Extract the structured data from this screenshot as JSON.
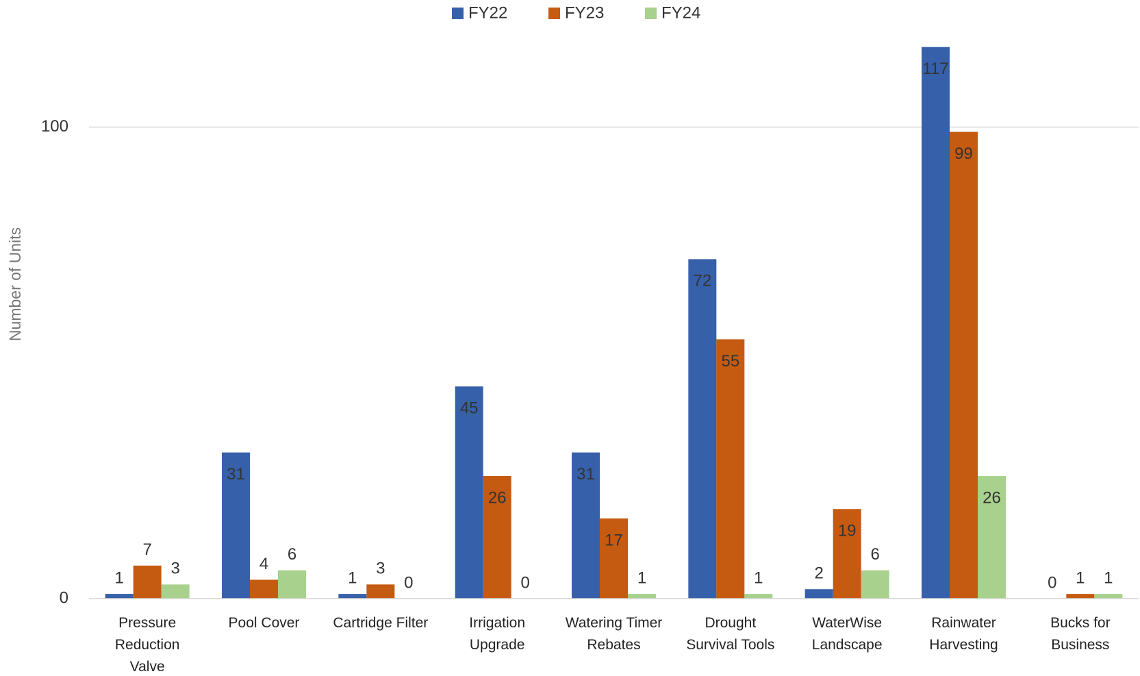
{
  "chart_data": {
    "type": "bar",
    "y_label": "Number of Units",
    "categories": [
      "Pressure\nReduction\nValve",
      "Pool Cover",
      "Cartridge Filter",
      "Irrigation\nUpgrade",
      "Watering Timer\nRebates",
      "Drought\nSurvival Tools",
      "WaterWise\nLandscape",
      "Rainwater\nHarvesting",
      "Bucks for\nBusiness"
    ],
    "series": [
      {
        "name": "FY22",
        "color": "#3760aa",
        "values": [
          1,
          31,
          1,
          45,
          31,
          72,
          2,
          117,
          0
        ]
      },
      {
        "name": "FY23",
        "color": "#c55a11",
        "values": [
          7,
          4,
          3,
          26,
          17,
          55,
          19,
          99,
          1
        ]
      },
      {
        "name": "FY24",
        "color": "#a9d18e",
        "values": [
          3,
          6,
          0,
          0,
          1,
          1,
          6,
          26,
          1
        ]
      }
    ],
    "ylim": [
      0,
      120
    ],
    "yticks": [
      0,
      100
    ],
    "grid": true,
    "legend": "top"
  }
}
